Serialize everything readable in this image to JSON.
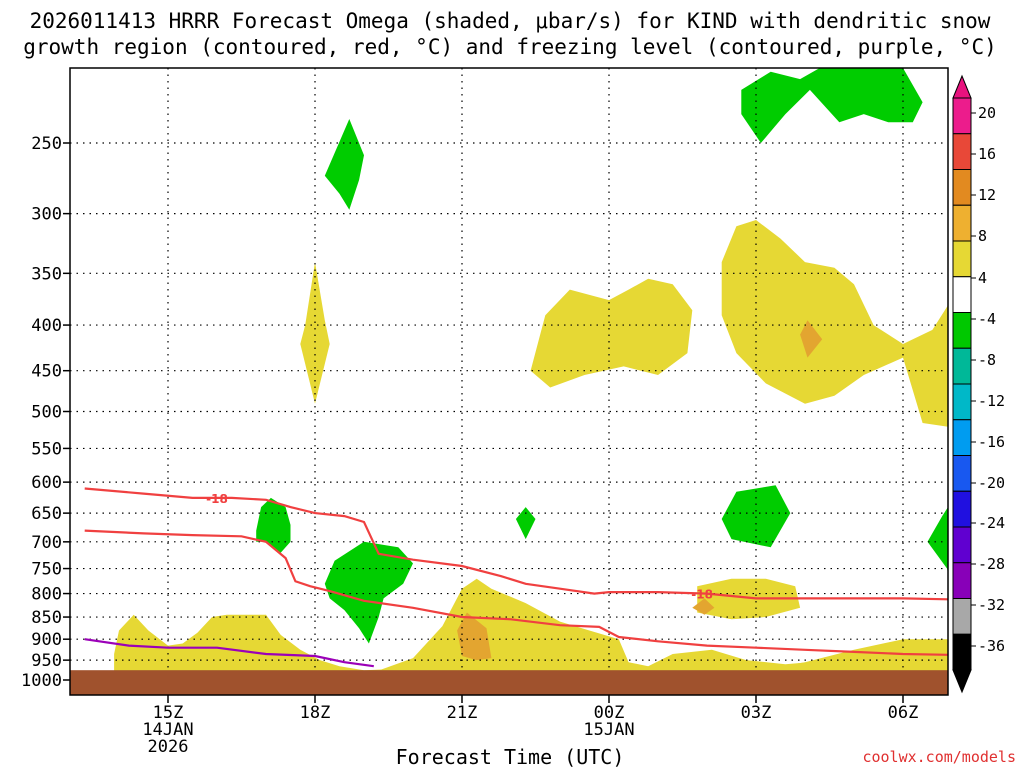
{
  "chart_data": {
    "type": "time-height",
    "title_line1": "2026011413 HRRR Forecast Omega (shaded, μbar/s) for KIND with dendritic snow",
    "title_line2": "growth region (contoured, red, °C) and freezing level (contoured, purple, °C)",
    "xlabel": "Forecast Time (UTC)",
    "credit": "coolwx.com/models",
    "colors": {
      "yellow": "#e6d834",
      "orange": "#e3a530",
      "green": "#00cc00",
      "ground": "#a0522d",
      "red": "#f04040",
      "purple": "#9b00b8",
      "credit": "#e03030"
    },
    "x_range_hours": [
      13.3,
      31.3
    ],
    "x_ticks": [
      {
        "t": 15,
        "lines": [
          "15Z",
          "14JAN",
          "2026"
        ]
      },
      {
        "t": 18,
        "lines": [
          "18Z"
        ]
      },
      {
        "t": 21,
        "lines": [
          "21Z"
        ]
      },
      {
        "t": 24,
        "lines": [
          "00Z",
          "15JAN"
        ]
      },
      {
        "t": 27,
        "lines": [
          "03Z"
        ]
      },
      {
        "t": 30,
        "lines": [
          "06Z"
        ]
      }
    ],
    "p_range": [
      1000,
      200
    ],
    "y_ticks": [
      250,
      300,
      350,
      400,
      450,
      500,
      550,
      600,
      650,
      700,
      750,
      800,
      850,
      900,
      950,
      1000
    ],
    "ground_p": 975,
    "colorbar": {
      "labels": [
        "20",
        "16",
        "12",
        "8",
        "4",
        "-4",
        "-8",
        "-12",
        "-16",
        "-20",
        "-24",
        "-28",
        "-32",
        "-36"
      ],
      "colors": [
        "#e8e41c",
        "#e0e02a",
        "#eeb030",
        "#e28a20",
        "#e84838",
        "#ec1c8c",
        "#ffffff",
        "#00c800",
        "#00b898",
        "#00b8c8",
        "#009cf0",
        "#1858f0",
        "#2010e0",
        "#6000d0",
        "#8800b8",
        "#a8a8a8",
        "#000000"
      ]
    },
    "shaded_regions": [
      {
        "level": "yellow",
        "pts": [
          [
            13.9,
            980
          ],
          [
            13.9,
            935
          ],
          [
            14.0,
            880
          ],
          [
            14.3,
            845
          ],
          [
            14.6,
            880
          ],
          [
            15.0,
            915
          ],
          [
            15.3,
            910
          ],
          [
            15.6,
            885
          ],
          [
            15.9,
            850
          ],
          [
            16.2,
            845
          ],
          [
            16.6,
            845
          ],
          [
            17.0,
            845
          ],
          [
            17.3,
            890
          ],
          [
            17.7,
            925
          ],
          [
            18.1,
            950
          ],
          [
            18.5,
            965
          ],
          [
            19.0,
            975
          ],
          [
            20.0,
            970
          ],
          [
            21.0,
            960
          ],
          [
            22.0,
            955
          ],
          [
            23.0,
            965
          ],
          [
            24.0,
            972
          ],
          [
            25.0,
            975
          ],
          [
            26.0,
            972
          ],
          [
            27.0,
            975
          ],
          [
            28.0,
            955
          ],
          [
            29.0,
            925
          ],
          [
            30.0,
            900
          ],
          [
            31.3,
            900
          ],
          [
            31.3,
            980
          ]
        ]
      },
      {
        "level": "yellow",
        "pts": [
          [
            19.2,
            980
          ],
          [
            20.0,
            945
          ],
          [
            20.6,
            870
          ],
          [
            21.0,
            790
          ],
          [
            21.3,
            770
          ],
          [
            21.6,
            790
          ],
          [
            22.3,
            820
          ],
          [
            23.0,
            860
          ],
          [
            23.6,
            880
          ],
          [
            24.2,
            900
          ],
          [
            24.4,
            955
          ],
          [
            24.8,
            965
          ],
          [
            25.3,
            935
          ],
          [
            26.1,
            925
          ],
          [
            26.8,
            950
          ],
          [
            27.6,
            960
          ],
          [
            28.6,
            950
          ],
          [
            28.6,
            980
          ]
        ]
      },
      {
        "level": "yellow",
        "pts": [
          [
            25.8,
            840
          ],
          [
            25.8,
            785
          ],
          [
            26.5,
            770
          ],
          [
            27.2,
            770
          ],
          [
            27.8,
            785
          ],
          [
            27.9,
            830
          ],
          [
            27.2,
            850
          ],
          [
            26.5,
            855
          ]
        ]
      },
      {
        "level": "yellow",
        "pts": [
          [
            17.8,
            400
          ],
          [
            18.0,
            340
          ],
          [
            18.2,
            395
          ],
          [
            18.3,
            420
          ],
          [
            18.0,
            490
          ],
          [
            17.7,
            420
          ]
        ]
      },
      {
        "level": "yellow",
        "pts": [
          [
            22.4,
            450
          ],
          [
            22.7,
            390
          ],
          [
            23.2,
            365
          ],
          [
            24.0,
            375
          ],
          [
            24.4,
            365
          ],
          [
            24.8,
            355
          ],
          [
            25.3,
            360
          ],
          [
            25.7,
            385
          ],
          [
            25.6,
            430
          ],
          [
            25.0,
            455
          ],
          [
            24.3,
            445
          ],
          [
            23.5,
            455
          ],
          [
            22.8,
            470
          ]
        ]
      },
      {
        "level": "yellow",
        "pts": [
          [
            26.3,
            340
          ],
          [
            26.6,
            310
          ],
          [
            27.0,
            305
          ],
          [
            27.5,
            320
          ],
          [
            28.0,
            340
          ],
          [
            28.6,
            345
          ],
          [
            29.0,
            360
          ],
          [
            29.4,
            400
          ],
          [
            30.0,
            420
          ],
          [
            30.6,
            405
          ],
          [
            31.3,
            380
          ],
          [
            31.3,
            520
          ],
          [
            30.4,
            515
          ],
          [
            30.0,
            435
          ],
          [
            29.2,
            455
          ],
          [
            28.6,
            480
          ],
          [
            28.0,
            490
          ],
          [
            27.2,
            465
          ],
          [
            26.6,
            430
          ],
          [
            26.3,
            390
          ]
        ]
      },
      {
        "level": "orange",
        "pts": [
          [
            21.0,
            940
          ],
          [
            20.9,
            880
          ],
          [
            21.1,
            840
          ],
          [
            21.5,
            875
          ],
          [
            21.6,
            945
          ],
          [
            21.3,
            950
          ]
        ]
      },
      {
        "level": "orange",
        "pts": [
          [
            25.7,
            830
          ],
          [
            25.95,
            810
          ],
          [
            26.15,
            830
          ],
          [
            25.95,
            845
          ]
        ]
      },
      {
        "level": "orange",
        "pts": [
          [
            27.9,
            410
          ],
          [
            28.05,
            395
          ],
          [
            28.35,
            415
          ],
          [
            28.05,
            435
          ]
        ]
      },
      {
        "level": "green",
        "pts": [
          [
            18.2,
            272
          ],
          [
            18.7,
            235
          ],
          [
            19.0,
            258
          ],
          [
            18.9,
            275
          ],
          [
            18.7,
            297
          ],
          [
            18.5,
            285
          ]
        ]
      },
      {
        "level": "green",
        "pts": [
          [
            16.8,
            680
          ],
          [
            16.9,
            640
          ],
          [
            17.1,
            625
          ],
          [
            17.4,
            640
          ],
          [
            17.5,
            670
          ],
          [
            17.5,
            700
          ],
          [
            17.3,
            720
          ],
          [
            17.0,
            700
          ],
          [
            16.8,
            700
          ]
        ]
      },
      {
        "level": "green",
        "pts": [
          [
            18.2,
            780
          ],
          [
            18.4,
            735
          ],
          [
            19.0,
            700
          ],
          [
            19.7,
            710
          ],
          [
            20.0,
            740
          ],
          [
            19.8,
            780
          ],
          [
            19.4,
            810
          ],
          [
            19.3,
            850
          ],
          [
            19.1,
            910
          ],
          [
            18.9,
            875
          ],
          [
            18.6,
            835
          ],
          [
            18.3,
            810
          ]
        ]
      },
      {
        "level": "green",
        "pts": [
          [
            22.1,
            660
          ],
          [
            22.3,
            640
          ],
          [
            22.5,
            660
          ],
          [
            22.3,
            695
          ]
        ]
      },
      {
        "level": "green",
        "pts": [
          [
            26.3,
            660
          ],
          [
            26.6,
            615
          ],
          [
            27.4,
            605
          ],
          [
            27.7,
            650
          ],
          [
            27.3,
            710
          ],
          [
            26.5,
            695
          ]
        ]
      },
      {
        "level": "green",
        "pts": [
          [
            26.7,
            218
          ],
          [
            27.3,
            208
          ],
          [
            27.9,
            212
          ],
          [
            28.3,
            205
          ],
          [
            29.0,
            200
          ],
          [
            30.0,
            205
          ],
          [
            30.4,
            225
          ],
          [
            30.2,
            237
          ],
          [
            29.7,
            237
          ],
          [
            29.2,
            232
          ],
          [
            28.7,
            237
          ],
          [
            28.1,
            218
          ],
          [
            27.6,
            232
          ],
          [
            27.1,
            250
          ],
          [
            26.7,
            232
          ]
        ]
      },
      {
        "level": "green",
        "pts": [
          [
            30.5,
            700
          ],
          [
            30.8,
            655
          ],
          [
            31.3,
            640
          ],
          [
            31.3,
            760
          ],
          [
            30.9,
            750
          ]
        ]
      }
    ],
    "contours": [
      {
        "color": "red",
        "pts": [
          [
            13.3,
            610
          ],
          [
            14.5,
            618
          ],
          [
            15.5,
            625
          ],
          [
            16.3,
            625
          ],
          [
            17.0,
            628
          ],
          [
            17.5,
            640
          ],
          [
            18.0,
            650
          ],
          [
            18.6,
            655
          ],
          [
            19.0,
            665
          ],
          [
            19.3,
            722
          ],
          [
            20.0,
            733
          ],
          [
            21.0,
            745
          ],
          [
            21.8,
            765
          ],
          [
            22.3,
            780
          ],
          [
            23.0,
            790
          ],
          [
            23.7,
            800
          ],
          [
            24.0,
            797
          ],
          [
            25.0,
            797
          ],
          [
            26.0,
            800
          ],
          [
            27.0,
            810
          ],
          [
            28.0,
            810
          ],
          [
            29.0,
            810
          ],
          [
            30.0,
            810
          ],
          [
            31.3,
            812
          ]
        ]
      },
      {
        "color": "red",
        "pts": [
          [
            13.3,
            680
          ],
          [
            14.5,
            685
          ],
          [
            15.5,
            688
          ],
          [
            16.5,
            690
          ],
          [
            17.0,
            700
          ],
          [
            17.4,
            730
          ],
          [
            17.6,
            775
          ],
          [
            17.9,
            785
          ],
          [
            18.3,
            795
          ],
          [
            19.0,
            815
          ],
          [
            20.0,
            830
          ],
          [
            21.0,
            850
          ],
          [
            22.0,
            855
          ],
          [
            23.0,
            868
          ],
          [
            23.8,
            872
          ],
          [
            24.2,
            895
          ],
          [
            25.0,
            905
          ],
          [
            26.0,
            915
          ],
          [
            27.0,
            920
          ],
          [
            28.0,
            925
          ],
          [
            29.0,
            930
          ],
          [
            30.0,
            935
          ],
          [
            31.3,
            937
          ]
        ]
      },
      {
        "color": "purple",
        "pts": [
          [
            13.3,
            900
          ],
          [
            14.2,
            915
          ],
          [
            15.0,
            920
          ],
          [
            16.0,
            920
          ],
          [
            17.0,
            935
          ],
          [
            18.0,
            940
          ],
          [
            18.6,
            955
          ],
          [
            19.2,
            965
          ]
        ]
      }
    ],
    "contour_labels": [
      {
        "t": 16.0,
        "p": 625,
        "text": "-18",
        "color": "red"
      },
      {
        "t": 25.9,
        "p": 800,
        "text": "-18",
        "color": "red"
      }
    ]
  }
}
